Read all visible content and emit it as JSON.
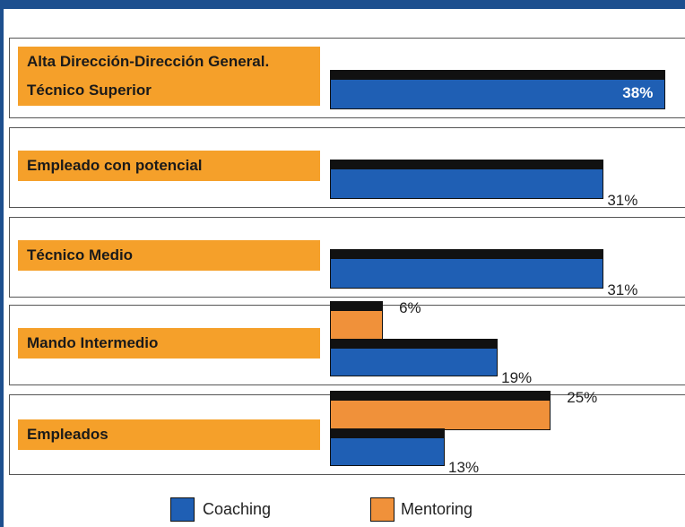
{
  "chart_data": {
    "type": "hbar",
    "categories": [
      "Alta Dirección-Dirección General.\nTécnico Superior",
      "Empleado con potencial",
      "Técnico Medio",
      "Mando Intermedio",
      "Empleados"
    ],
    "series": [
      {
        "name": "Coaching",
        "color": "#1f5fb4",
        "values": [
          38,
          31,
          31,
          19,
          13
        ],
        "value_labels": [
          "38%",
          "31%",
          "31%",
          "19%",
          "13%"
        ]
      },
      {
        "name": "Mentoring",
        "color": "#f0913a",
        "values": [
          null,
          null,
          null,
          6,
          25
        ],
        "value_labels": [
          null,
          null,
          null,
          "6%",
          "25%"
        ]
      }
    ]
  }
}
